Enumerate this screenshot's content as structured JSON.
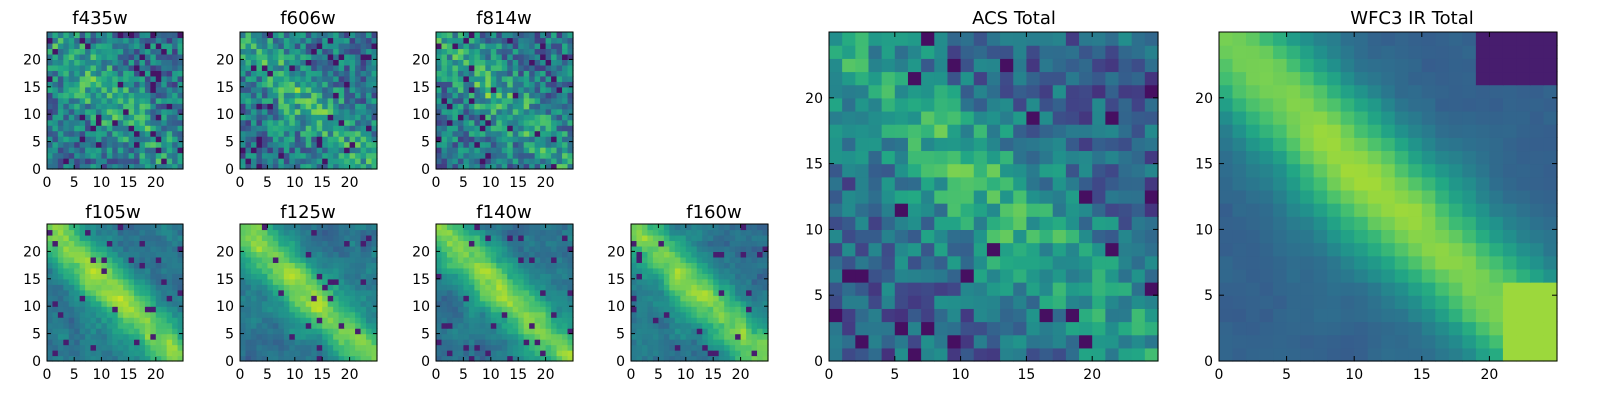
{
  "colormap": "viridis",
  "chart_data": [
    {
      "type": "heatmap",
      "title": "f435w",
      "field_style": "noisy",
      "xlim": [
        0,
        25
      ],
      "ylim": [
        0,
        25
      ],
      "xticks": [
        0,
        5,
        10,
        15,
        20
      ],
      "yticks": [
        0,
        5,
        10,
        15,
        20
      ]
    },
    {
      "type": "heatmap",
      "title": "f606w",
      "field_style": "noisy",
      "xlim": [
        0,
        25
      ],
      "ylim": [
        0,
        25
      ],
      "xticks": [
        0,
        5,
        10,
        15,
        20
      ],
      "yticks": [
        0,
        5,
        10,
        15,
        20
      ]
    },
    {
      "type": "heatmap",
      "title": "f814w",
      "field_style": "noisy",
      "xlim": [
        0,
        25
      ],
      "ylim": [
        0,
        25
      ],
      "xticks": [
        0,
        5,
        10,
        15,
        20
      ],
      "yticks": [
        0,
        5,
        10,
        15,
        20
      ]
    },
    {
      "type": "heatmap",
      "title": "f105w",
      "field_style": "diagonal",
      "xlim": [
        0,
        25
      ],
      "ylim": [
        0,
        25
      ],
      "xticks": [
        0,
        5,
        10,
        15,
        20
      ],
      "yticks": [
        0,
        5,
        10,
        15,
        20
      ]
    },
    {
      "type": "heatmap",
      "title": "f125w",
      "field_style": "diagonal",
      "xlim": [
        0,
        25
      ],
      "ylim": [
        0,
        25
      ],
      "xticks": [
        0,
        5,
        10,
        15,
        20
      ],
      "yticks": [
        0,
        5,
        10,
        15,
        20
      ]
    },
    {
      "type": "heatmap",
      "title": "f140w",
      "field_style": "diagonal",
      "xlim": [
        0,
        25
      ],
      "ylim": [
        0,
        25
      ],
      "xticks": [
        0,
        5,
        10,
        15,
        20
      ],
      "yticks": [
        0,
        5,
        10,
        15,
        20
      ]
    },
    {
      "type": "heatmap",
      "title": "f160w",
      "field_style": "diagonal",
      "xlim": [
        0,
        25
      ],
      "ylim": [
        0,
        25
      ],
      "xticks": [
        0,
        5,
        10,
        15,
        20
      ],
      "yticks": [
        0,
        5,
        10,
        15,
        20
      ]
    },
    {
      "type": "heatmap",
      "title": "ACS Total",
      "field_style": "moderate",
      "xlim": [
        0,
        25
      ],
      "ylim": [
        0,
        25
      ],
      "xticks": [
        0,
        5,
        10,
        15,
        20
      ],
      "yticks": [
        0,
        5,
        10,
        15,
        20
      ]
    },
    {
      "type": "heatmap",
      "title": "WFC3 IR Total",
      "field_style": "smooth",
      "xlim": [
        0,
        25
      ],
      "ylim": [
        0,
        25
      ],
      "xticks": [
        0,
        5,
        10,
        15,
        20
      ],
      "yticks": [
        0,
        5,
        10,
        15,
        20
      ]
    }
  ]
}
